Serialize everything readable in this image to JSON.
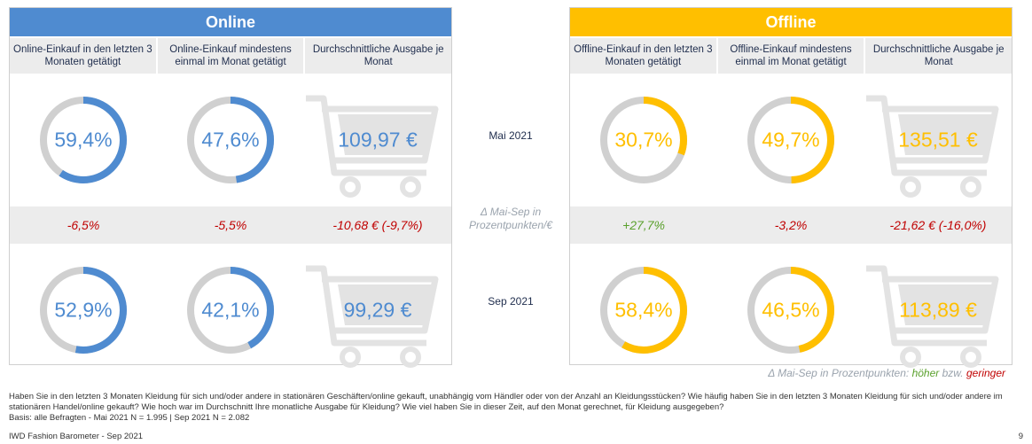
{
  "online": {
    "title": "Online",
    "columns": [
      "Online-Einkauf in den letzten 3 Monaten getätigt",
      "Online-Einkauf mindestens einmal im Monat getätigt",
      "Durchschnittliche Ausgabe je Monat"
    ],
    "mai": {
      "purchase_3m": "59,4%",
      "monthly": "47,6%",
      "spend": "109,97 €"
    },
    "delta": {
      "purchase_3m": "-6,5%",
      "monthly": "-5,5%",
      "spend": "-10,68 € (-9,7%)"
    },
    "sep": {
      "purchase_3m": "52,9%",
      "monthly": "42,1%",
      "spend": "99,29 €"
    }
  },
  "offline": {
    "title": "Offline",
    "columns": [
      "Offline-Einkauf in den letzten 3 Monaten getätigt",
      "Offline-Einkauf mindestens einmal im Monat getätigt",
      "Durchschnittliche Ausgabe je Monat"
    ],
    "mai": {
      "purchase_3m": "30,7%",
      "monthly": "49,7%",
      "spend": "135,51 €"
    },
    "delta": {
      "purchase_3m": "+27,7%",
      "monthly": "-3,2%",
      "spend": "-21,62 € (-16,0%)"
    },
    "sep": {
      "purchase_3m": "58,4%",
      "monthly": "46,5%",
      "spend": "113,89 €"
    }
  },
  "labels": {
    "mai": "Mai 2021",
    "delta": "Δ Mai-Sep in Prozentpunkten/€",
    "sep": "Sep 2021"
  },
  "legend": {
    "prefix": "Δ Mai-Sep in Prozentpunkten:",
    "higher": "höher",
    "mid": "bzw.",
    "lower": "geringer"
  },
  "footnote": "Haben Sie in den letzten 3 Monaten Kleidung für sich und/oder andere in stationären Geschäften/online gekauft, unabhängig vom Händler oder von der Anzahl an Kleidungsstücken? Wie häufig haben Sie in den letzten 3 Monaten Kleidung für sich und/oder andere im stationären Handel/online gekauft? Wie hoch war im Durchschnitt Ihre monatliche Ausgabe für Kleidung? Wie viel haben Sie in dieser Zeit, auf den Monat gerechnet, für Kleidung ausgegeben?",
  "basis": "Basis: alle Befragten - Mai 2021 N = 1.995 | Sep 2021 N = 2.082",
  "source": "IWD Fashion Barometer - Sep 2021",
  "page_number": "9",
  "colors": {
    "online": "#4f8bd0",
    "offline": "#ffbf00",
    "track": "#d0d0d0",
    "cart": "#e3e3e3"
  },
  "chart_data": [
    {
      "type": "donut",
      "series": [
        {
          "name": "Online-Einkauf in den letzten 3 Monaten getätigt",
          "values": {
            "Mai 2021": 59.4,
            "Sep 2021": 52.9
          }
        },
        {
          "name": "Online-Einkauf mindestens einmal im Monat getätigt",
          "values": {
            "Mai 2021": 47.6,
            "Sep 2021": 42.1
          }
        },
        {
          "name": "Offline-Einkauf in den letzten 3 Monaten getätigt",
          "values": {
            "Mai 2021": 30.7,
            "Sep 2021": 58.4
          }
        },
        {
          "name": "Offline-Einkauf mindestens einmal im Monat getätigt",
          "values": {
            "Mai 2021": 49.7,
            "Sep 2021": 46.5
          }
        }
      ]
    },
    {
      "type": "table",
      "series": [
        {
          "name": "Online: Durchschnittliche Ausgabe je Monat",
          "values": {
            "Mai 2021": 109.97,
            "Sep 2021": 99.29
          }
        },
        {
          "name": "Offline: Durchschnittliche Ausgabe je Monat",
          "values": {
            "Mai 2021": 135.51,
            "Sep 2021": 113.89
          }
        }
      ]
    }
  ]
}
